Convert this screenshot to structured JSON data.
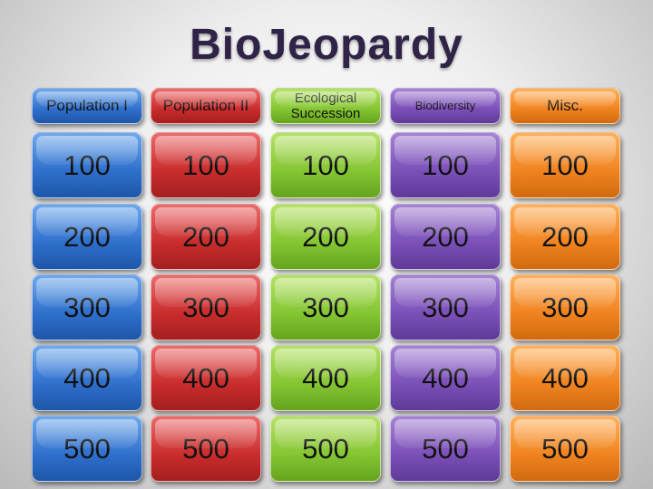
{
  "title": "BioJeopardy",
  "categories": [
    "Population I",
    "Population II",
    "Ecological Succession",
    "Biodiversity",
    "Misc."
  ],
  "values": [
    "100",
    "200",
    "300",
    "400",
    "500"
  ],
  "colors": {
    "title": "#2f2347",
    "population_1": "#2e6fcc",
    "population_2": "#c92c2c",
    "ecological_succession": "#84c532",
    "biodiversity": "#7b4fb8",
    "misc": "#f0831f"
  }
}
